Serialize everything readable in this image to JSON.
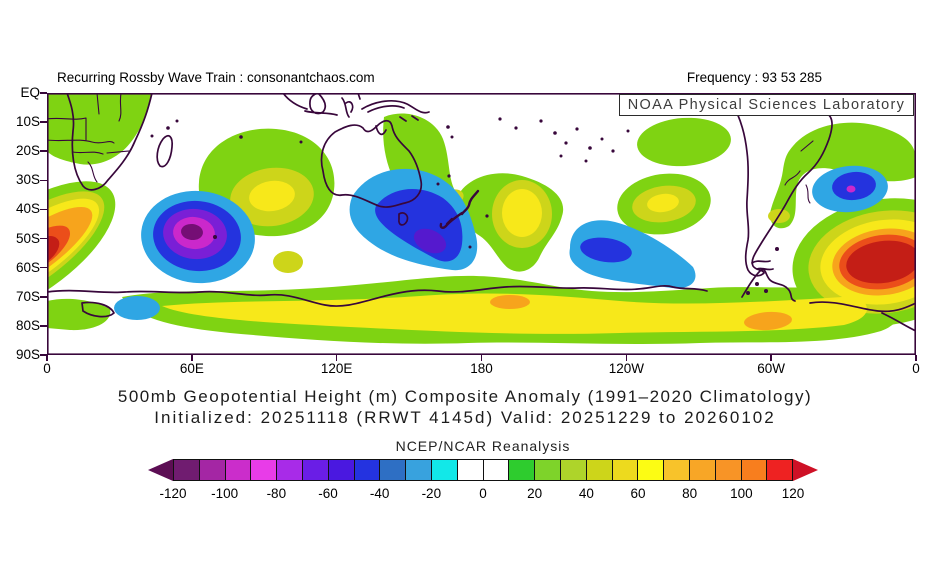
{
  "header": {
    "left_title": "Recurring Rossby Wave Train : consonantchaos.com",
    "frequency_label": "Frequency : 93 53 285",
    "lab_box_label": "NOAA Physical Sciences Laboratory"
  },
  "axes": {
    "lat_ticks": [
      "EQ",
      "10S",
      "20S",
      "30S",
      "40S",
      "50S",
      "60S",
      "70S",
      "80S",
      "90S"
    ],
    "lon_ticks": [
      "0",
      "60E",
      "120E",
      "180",
      "120W",
      "60W",
      "0"
    ]
  },
  "titles": {
    "line1": "500mb Geopotential Height (m) Composite Anomaly (1991–2020 Climatology)",
    "line2": "Initialized: 20251118 (RRWT 4145d) Valid: 20251229 to 20260102"
  },
  "colorbar": {
    "label": "NCEP/NCAR Reanalysis",
    "ticks": [
      "-120",
      "-100",
      "-80",
      "-60",
      "-40",
      "-20",
      "0",
      "20",
      "40",
      "60",
      "80",
      "100",
      "120"
    ],
    "cell_colors": [
      "#701C70",
      "#A426A4",
      "#CB2DCB",
      "#E83CE8",
      "#A82BE8",
      "#6A1EE6",
      "#4A18E0",
      "#2433E0",
      "#2E6FC4",
      "#38A2DE",
      "#12E8E8",
      "#FFFFFF",
      "#FFFFFF",
      "#2ECC2E",
      "#7ED32A",
      "#AED42A",
      "#CDD51A",
      "#EDDA1E",
      "#FCFC14",
      "#F8C32A",
      "#F8A626",
      "#F89426",
      "#F87E1E",
      "#EE2222"
    ],
    "left_arrow_color": "#5C0E54",
    "right_arrow_color": "#CE1126"
  },
  "palette": {
    "green": "#7FD312",
    "mustard": "#CDD51A",
    "yellow": "#F7E81A",
    "orange": "#F7A41C",
    "redorange": "#EB4E1A",
    "darkred": "#C41E16",
    "sky": "#2FA6E4",
    "royal": "#2433DE",
    "blueviolet": "#7A1FD6",
    "violet": "#5519CE",
    "magenta": "#CB28CB",
    "darkpurple": "#750E75",
    "cyan": "#12E8E8",
    "coast": "#38073B"
  },
  "chart_data": {
    "type": "heatmap",
    "variable": "500mb Geopotential Height (m) Composite Anomaly",
    "climatology": "1991–2020",
    "initialized": "20251118",
    "composite_id": "RRWT 4145d",
    "valid_range": "20251229 to 20260102",
    "dataset": "NCEP/NCAR Reanalysis",
    "frequency": "93 53 285",
    "lat_labels": [
      "EQ",
      "10S",
      "20S",
      "30S",
      "40S",
      "50S",
      "60S",
      "70S",
      "80S",
      "90S"
    ],
    "lon_labels": [
      "0",
      "60E",
      "120E",
      "180",
      "120W",
      "60W",
      "0"
    ],
    "contour_interval_m": 20,
    "colorbar_range_m": [
      -120,
      120
    ],
    "anomaly_centers": [
      {
        "lon": "5E",
        "lat": "55S",
        "peak_m": 125,
        "sign": "positive"
      },
      {
        "lon": "60E",
        "lat": "52S",
        "peak_m": -110,
        "sign": "negative"
      },
      {
        "lon": "95E",
        "lat": "36S",
        "peak_m": 60,
        "sign": "positive"
      },
      {
        "lon": "140E",
        "lat": "47S",
        "peak_m": -75,
        "sign": "negative"
      },
      {
        "lon": "177E",
        "lat": "42S",
        "peak_m": 55,
        "sign": "positive"
      },
      {
        "lon": "148W",
        "lat": "55S",
        "peak_m": -50,
        "sign": "negative"
      },
      {
        "lon": "105W",
        "lat": "38S",
        "peak_m": 55,
        "sign": "positive"
      },
      {
        "lon": "27W",
        "lat": "33S",
        "peak_m": -85,
        "sign": "negative"
      },
      {
        "lon": "8W",
        "lat": "58S",
        "peak_m": 130,
        "sign": "positive"
      },
      {
        "lon": "168E",
        "lat": "72S",
        "peak_m": 80,
        "sign": "positive"
      },
      {
        "lon": "50W",
        "lat": "79S",
        "peak_m": 80,
        "sign": "positive"
      }
    ]
  }
}
